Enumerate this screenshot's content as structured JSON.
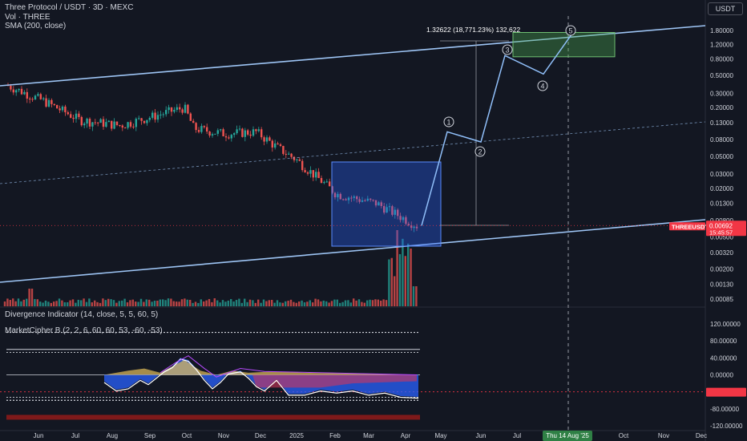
{
  "header": {
    "title": "Three Protocol / USDT · 3D · MEXC",
    "vol_label": "Vol · THREE",
    "sma_label": "SMA (200, close)",
    "currency_button": "USDT"
  },
  "price_axis": {
    "ticks": [
      "1.80000",
      "1.20000",
      "0.80000",
      "0.50000",
      "0.30000",
      "0.20000",
      "0.13000",
      "0.08000",
      "0.05000",
      "0.03000",
      "0.02000",
      "0.01300",
      "0.00800",
      "0.00500",
      "0.00320",
      "0.00200",
      "0.00130",
      "0.00085"
    ],
    "symbol_tag": "THREEUSDT",
    "last_price": "0.00692",
    "countdown": "15:45:57"
  },
  "projection": {
    "measure_label": "1.32622 (18,771.23%) 132,622",
    "waves": [
      "1",
      "2",
      "3",
      "4",
      "5"
    ]
  },
  "indicators": {
    "divergence_label": "Divergence Indicator (14, close, 5, 5, 60, 5)",
    "cipher_label": "MarketCipher B (2, 2, 6, 60, 60, 53, -60, -53)",
    "osc_ticks": [
      "120.00000",
      "80.00000",
      "40.00000",
      "0.00000",
      "-40.00000",
      "-80.00000",
      "-120.00000"
    ]
  },
  "time_axis": {
    "labels": [
      "Jun",
      "Jul",
      "Aug",
      "Sep",
      "Oct",
      "Nov",
      "Dec",
      "2025",
      "Feb",
      "Mar",
      "Apr",
      "May",
      "Jun",
      "Jul",
      "Aug",
      "Oct",
      "Nov",
      "Dec"
    ],
    "crosshair_label": "Thu 14 Aug '25"
  },
  "colors": {
    "background": "#131722",
    "up": "#26a69a",
    "down": "#ef5350",
    "channel": "#9ec5f5",
    "box_blue": "#2962ff",
    "box_green": "#4caf50",
    "wave_line": "#90bff9",
    "price_tag": "#f23645"
  },
  "chart_data": {
    "type": "candlestick",
    "title": "Three Protocol / USDT · 3D · MEXC",
    "scale": "log",
    "approx_close_path": [
      {
        "x": "Jun",
        "y": 0.38
      },
      {
        "x": "Jul",
        "y": 0.24
      },
      {
        "x": "Aug",
        "y": 0.14
      },
      {
        "x": "Sep",
        "y": 0.12
      },
      {
        "x": "Oct",
        "y": 0.2
      },
      {
        "x": "Oct",
        "y": 0.11
      },
      {
        "x": "Nov",
        "y": 0.095
      },
      {
        "x": "Dec",
        "y": 0.1
      },
      {
        "x": "Dec",
        "y": 0.065
      },
      {
        "x": "2025",
        "y": 0.045
      },
      {
        "x": "Feb",
        "y": 0.017
      },
      {
        "x": "Mar",
        "y": 0.013
      },
      {
        "x": "Apr",
        "y": 0.0069
      }
    ],
    "last_price": 0.00692,
    "projection_path": [
      {
        "label": "start",
        "y": 0.0069
      },
      {
        "label": "1",
        "y": 0.1
      },
      {
        "label": "2",
        "y": 0.075
      },
      {
        "label": "3",
        "y": 0.88
      },
      {
        "label": "4",
        "y": 0.52
      },
      {
        "label": "5",
        "y": 1.6
      }
    ],
    "projection_target": 1.32622,
    "projection_percent": 18771.23,
    "target_zone": [
      0.85,
      1.7
    ],
    "oscillator_range": [
      -120,
      120
    ]
  }
}
